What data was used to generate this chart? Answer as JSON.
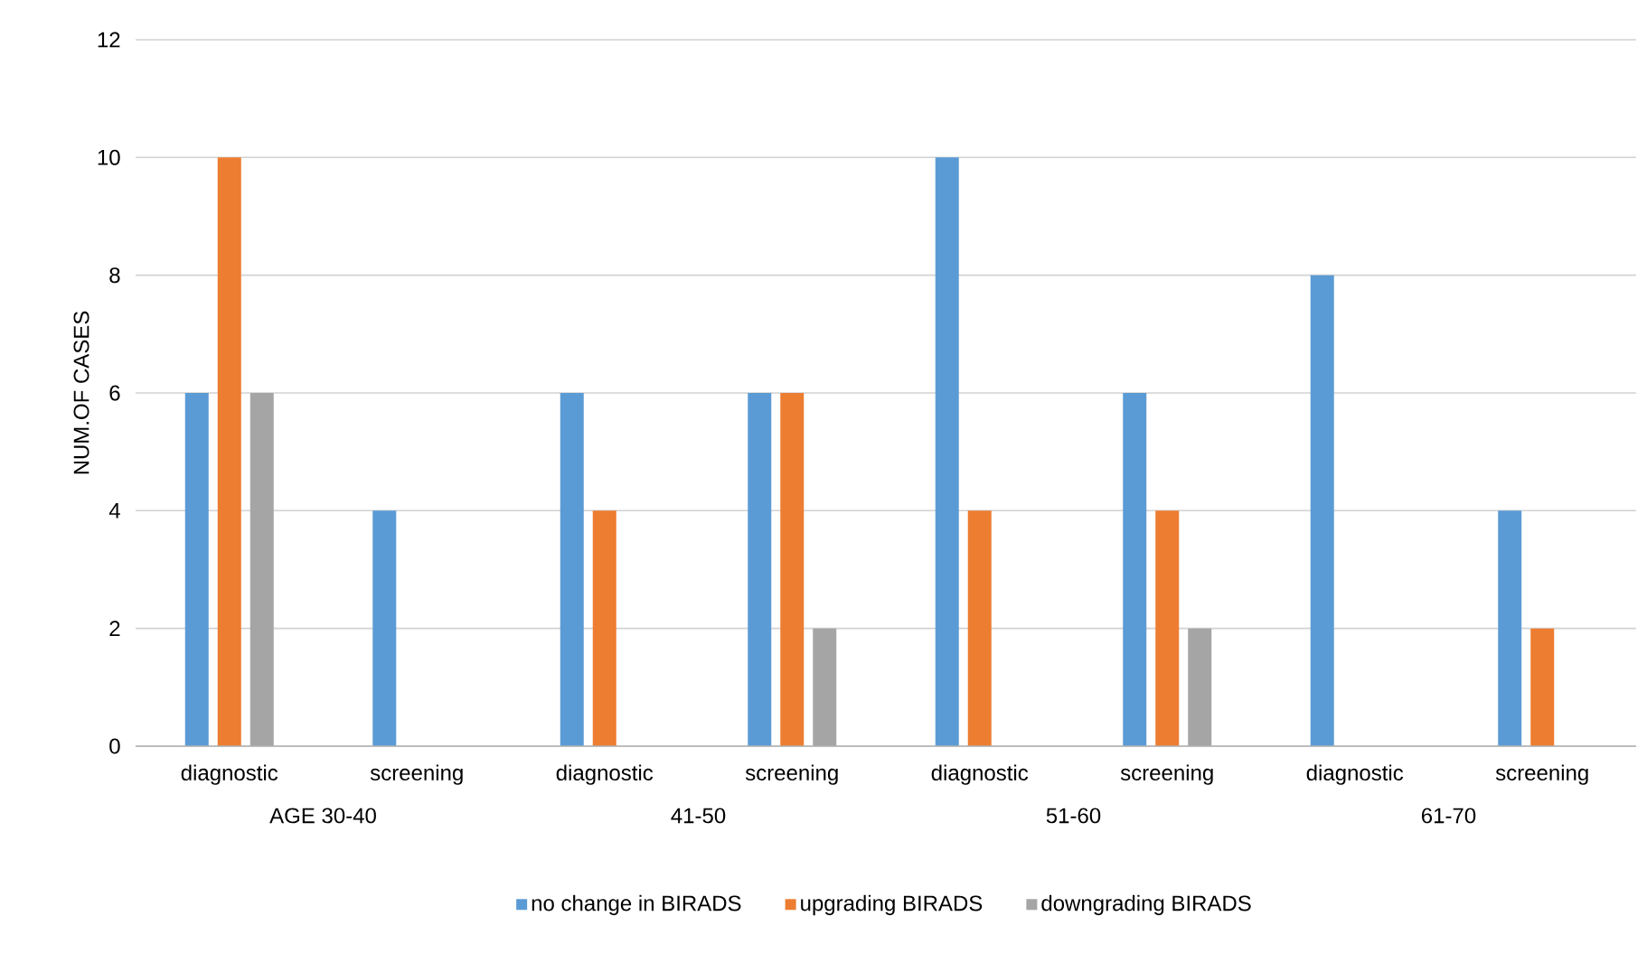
{
  "chart_data": {
    "type": "bar",
    "ylabel": "NUM.OF CASES",
    "categories": [
      "diagnostic",
      "screening",
      "diagnostic",
      "screening",
      "diagnostic",
      "screening",
      "diagnostic",
      "screening"
    ],
    "series": [
      {
        "name": "no change in BIRADS",
        "color": "#5b9bd5",
        "values": [
          6,
          4,
          6,
          6,
          10,
          6,
          8,
          4
        ]
      },
      {
        "name": "upgrading BIRADS",
        "color": "#ed7d31",
        "values": [
          10,
          null,
          4,
          6,
          4,
          4,
          null,
          2
        ]
      },
      {
        "name": "downgrading BIRADS",
        "color": "#a5a5a5",
        "values": [
          6,
          null,
          null,
          2,
          null,
          2,
          null,
          null
        ]
      }
    ],
    "annotations": [
      "AGE     30-40",
      "41-50",
      "51-60",
      "61-70"
    ],
    "ylim": [
      0,
      12
    ],
    "yticks": [
      0,
      2,
      4,
      6,
      8,
      10,
      12
    ],
    "grid": "y",
    "legend": "bottom"
  }
}
